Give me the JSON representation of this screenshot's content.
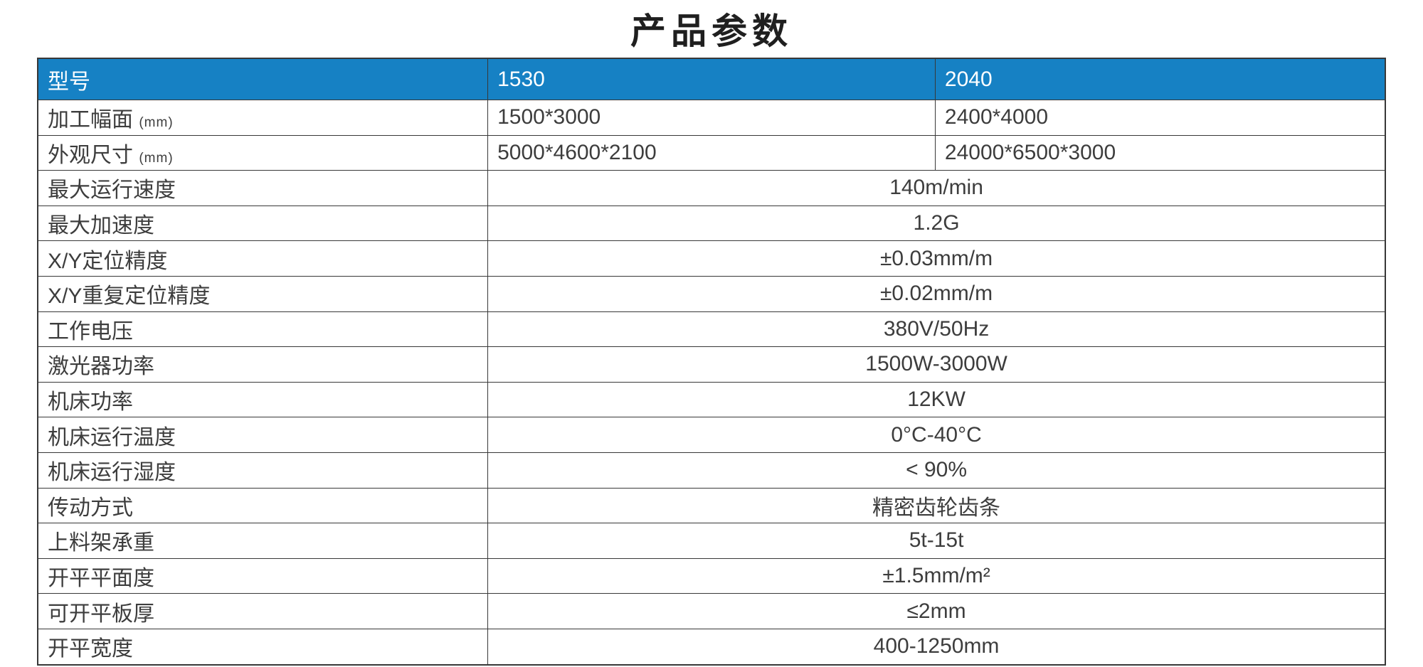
{
  "page": {
    "title": "产品参数"
  },
  "colors": {
    "header_bg": "#1681c4",
    "header_text": "#ffffff",
    "body_text": "#3d3d3d",
    "border": "#383838",
    "title_text": "#1f1f1f"
  },
  "table": {
    "header": {
      "model_label": "型号",
      "model_1": "1530",
      "model_2": "2040"
    },
    "rows": [
      {
        "label": "加工幅面",
        "label_suffix": "(mm)",
        "type": "split",
        "value1": "1500*3000",
        "value2": "2400*4000"
      },
      {
        "label": "外观尺寸",
        "label_suffix": "(mm)",
        "type": "split",
        "value1": "5000*4600*2100",
        "value2": "24000*6500*3000"
      },
      {
        "label": "最大运行速度",
        "type": "merged",
        "value": "140m/min"
      },
      {
        "label": "最大加速度",
        "type": "merged",
        "value": "1.2G"
      },
      {
        "label": "X/Y定位精度",
        "type": "merged",
        "value": "±0.03mm/m"
      },
      {
        "label": "X/Y重复定位精度",
        "type": "merged",
        "value": "±0.02mm/m"
      },
      {
        "label": "工作电压",
        "type": "merged",
        "value": "380V/50Hz"
      },
      {
        "label": "激光器功率",
        "type": "merged",
        "value": "1500W-3000W"
      },
      {
        "label": "机床功率",
        "type": "merged",
        "value": "12KW"
      },
      {
        "label": "机床运行温度",
        "type": "merged",
        "value": "0°C-40°C"
      },
      {
        "label": "机床运行湿度",
        "type": "merged",
        "value": "< 90%"
      },
      {
        "label": "传动方式",
        "type": "merged",
        "value": "精密齿轮齿条"
      },
      {
        "label": "上料架承重",
        "type": "merged",
        "value": "5t-15t"
      },
      {
        "label": "开平平面度",
        "type": "merged",
        "value": "±1.5mm/m²"
      },
      {
        "label": "可开平板厚",
        "type": "merged",
        "value": "≤2mm"
      },
      {
        "label": "开平宽度",
        "type": "merged",
        "value": "400-1250mm"
      }
    ]
  }
}
